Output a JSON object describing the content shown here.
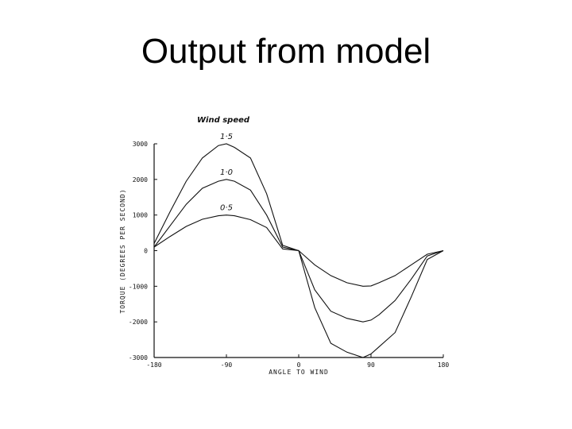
{
  "slide": {
    "title": "Output from model"
  },
  "chart_data": {
    "type": "line",
    "title": "",
    "annotation": "Wind speed",
    "xlabel": "ANGLE TO WIND",
    "ylabel": "TORQUE (DEGREES PER SECOND)",
    "xlim": [
      -180,
      180
    ],
    "ylim": [
      -3000,
      3000
    ],
    "x_ticks": [
      -180,
      -90,
      0,
      90,
      180
    ],
    "x_tick_labels": [
      "-180",
      "-90",
      "0",
      "90",
      "180"
    ],
    "y_ticks": [
      3000,
      2000,
      1000,
      0,
      -1000,
      -2000,
      -3000
    ],
    "y_tick_labels": [
      "3000",
      "2000",
      "1000",
      "0",
      "-1000",
      "-2000",
      "-3000"
    ],
    "grid": false,
    "legend": "none",
    "x": [
      -180,
      -160,
      -140,
      -120,
      -100,
      -90,
      -80,
      -60,
      -40,
      -20,
      0,
      20,
      40,
      60,
      80,
      90,
      100,
      120,
      140,
      160,
      180
    ],
    "series": [
      {
        "name": "1·5",
        "values": [
          200,
          1100,
          1950,
          2600,
          2950,
          3000,
          2900,
          2600,
          1600,
          150,
          0,
          -1600,
          -2600,
          -2850,
          -3000,
          -2900,
          -2700,
          -2300,
          -1300,
          -250,
          0
        ]
      },
      {
        "name": "1·0",
        "values": [
          100,
          700,
          1300,
          1750,
          1950,
          2000,
          1950,
          1700,
          1000,
          100,
          0,
          -1100,
          -1700,
          -1900,
          -2000,
          -1950,
          -1800,
          -1400,
          -800,
          -150,
          0
        ]
      },
      {
        "name": "0·5",
        "values": [
          100,
          400,
          680,
          880,
          980,
          1000,
          980,
          870,
          650,
          50,
          0,
          -400,
          -700,
          -900,
          -1000,
          -990,
          -900,
          -700,
          -400,
          -100,
          0
        ]
      }
    ]
  }
}
